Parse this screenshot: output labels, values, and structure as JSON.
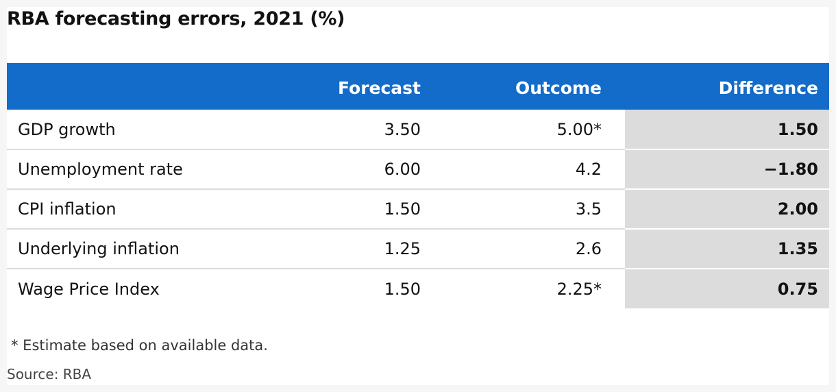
{
  "chart_data": {
    "type": "table",
    "title": "RBA forecasting errors, 2021 (%)",
    "columns": [
      "",
      "Forecast",
      "Outcome",
      "Difference"
    ],
    "rows": [
      {
        "label": "GDP growth",
        "forecast": "3.50",
        "outcome": "5.00*",
        "difference": "1.50"
      },
      {
        "label": "Unemployment rate",
        "forecast": "6.00",
        "outcome": "4.2",
        "difference": "−1.80"
      },
      {
        "label": "CPI inflation",
        "forecast": "1.50",
        "outcome": "3.5",
        "difference": "2.00"
      },
      {
        "label": "Underlying inflation",
        "forecast": "1.25",
        "outcome": "2.6",
        "difference": "1.35"
      },
      {
        "label": "Wage Price Index",
        "forecast": "1.50",
        "outcome": "2.25*",
        "difference": "0.75"
      }
    ],
    "footnote": "* Estimate based on available data.",
    "source": "Source: RBA"
  },
  "colors": {
    "header_background": "#136cc9",
    "header_text": "#ffffff",
    "difference_column_background": "#dcdcdc",
    "row_divider": "#dcdcdc"
  }
}
